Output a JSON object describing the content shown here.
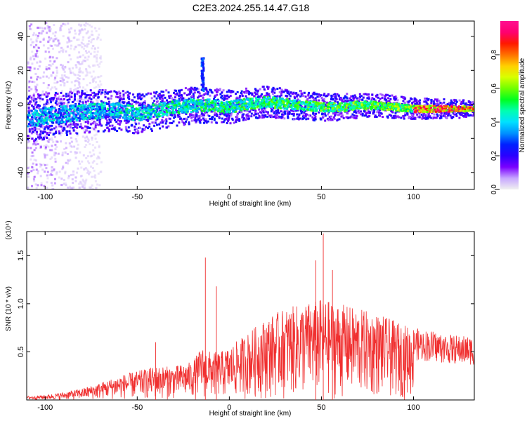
{
  "figure": {
    "title": "C2E3.2024.255.14.47.G18"
  },
  "colorbar": {
    "label": "Normalized spectral amplitude",
    "ticks": [
      "0.0",
      "0.2",
      "0.4",
      "0.6",
      "0.8"
    ],
    "colors": [
      "#f0f0f0",
      "#c7a6ff",
      "#7a00ff",
      "#2a00ff",
      "#0020ff",
      "#0090ff",
      "#00e0ff",
      "#00ffb0",
      "#00ff20",
      "#70ff00",
      "#d8ff00",
      "#ffd000",
      "#ff7000",
      "#ff1800",
      "#ff0070",
      "#ff1090"
    ]
  },
  "chart_data": [
    {
      "type": "heatmap",
      "xlabel": "Height of straight line (km)",
      "ylabel": "Frequency (Hz)",
      "xlim": [
        -110,
        133
      ],
      "ylim": [
        -50,
        49
      ],
      "xticks": [
        "-100",
        "-50",
        "0",
        "50",
        "100"
      ],
      "xtick_values": [
        -100,
        -50,
        0,
        50,
        100
      ],
      "yticks": [
        "-40",
        "-20",
        "0",
        "20",
        "40"
      ],
      "ytick_values": [
        -40,
        -20,
        0,
        20,
        40
      ],
      "ridge": {
        "x": [
          -110,
          -100,
          -90,
          -80,
          -70,
          -60,
          -50,
          -40,
          -30,
          -20,
          -10,
          0,
          10,
          20,
          30,
          40,
          50,
          60,
          70,
          80,
          90,
          100,
          110,
          120,
          133
        ],
        "y": [
          -8,
          -6,
          -5,
          -4,
          -3,
          -3,
          -5,
          -3,
          -1,
          0,
          0,
          -1,
          1,
          2,
          1,
          0,
          -1,
          -1,
          0,
          0,
          -1,
          -2,
          -2,
          -2,
          -2
        ]
      },
      "feature": {
        "x": -15,
        "y_range": [
          8,
          28
        ]
      }
    },
    {
      "type": "line",
      "xlabel": "Height of straight line (km)",
      "ylabel": "SNR (10 * v/v)",
      "y_multiplier": "(x10⁴)",
      "xlim": [
        -110,
        133
      ],
      "ylim": [
        0,
        1.75
      ],
      "xticks": [
        "-100",
        "-50",
        "0",
        "50",
        "100"
      ],
      "xtick_values": [
        -100,
        -50,
        0,
        50,
        100
      ],
      "yticks": [
        "0.5",
        "1.0",
        "1.5"
      ],
      "ytick_values": [
        0.5,
        1.0,
        1.5
      ],
      "series": [
        {
          "color": "#f03030",
          "envelope_x": [
            -110,
            -100,
            -90,
            -80,
            -70,
            -60,
            -50,
            -40,
            -30,
            -20,
            -15,
            -10,
            -5,
            0,
            10,
            20,
            30,
            40,
            50,
            60,
            70,
            80,
            90,
            100,
            110,
            120,
            133
          ],
          "envelope_y": [
            0.04,
            0.05,
            0.08,
            0.12,
            0.18,
            0.25,
            0.3,
            0.35,
            0.35,
            0.4,
            0.55,
            0.5,
            0.5,
            0.55,
            0.7,
            0.85,
            0.95,
            1.0,
            1.05,
            1.0,
            0.95,
            0.9,
            0.82,
            0.75,
            0.72,
            0.68,
            0.66
          ],
          "peaks": [
            {
              "x": -40,
              "y": 0.6
            },
            {
              "x": -13,
              "y": 1.48
            },
            {
              "x": -7,
              "y": 1.18
            },
            {
              "x": 47,
              "y": 1.45
            },
            {
              "x": 51,
              "y": 1.73
            },
            {
              "x": 56,
              "y": 1.35
            }
          ]
        }
      ]
    }
  ]
}
